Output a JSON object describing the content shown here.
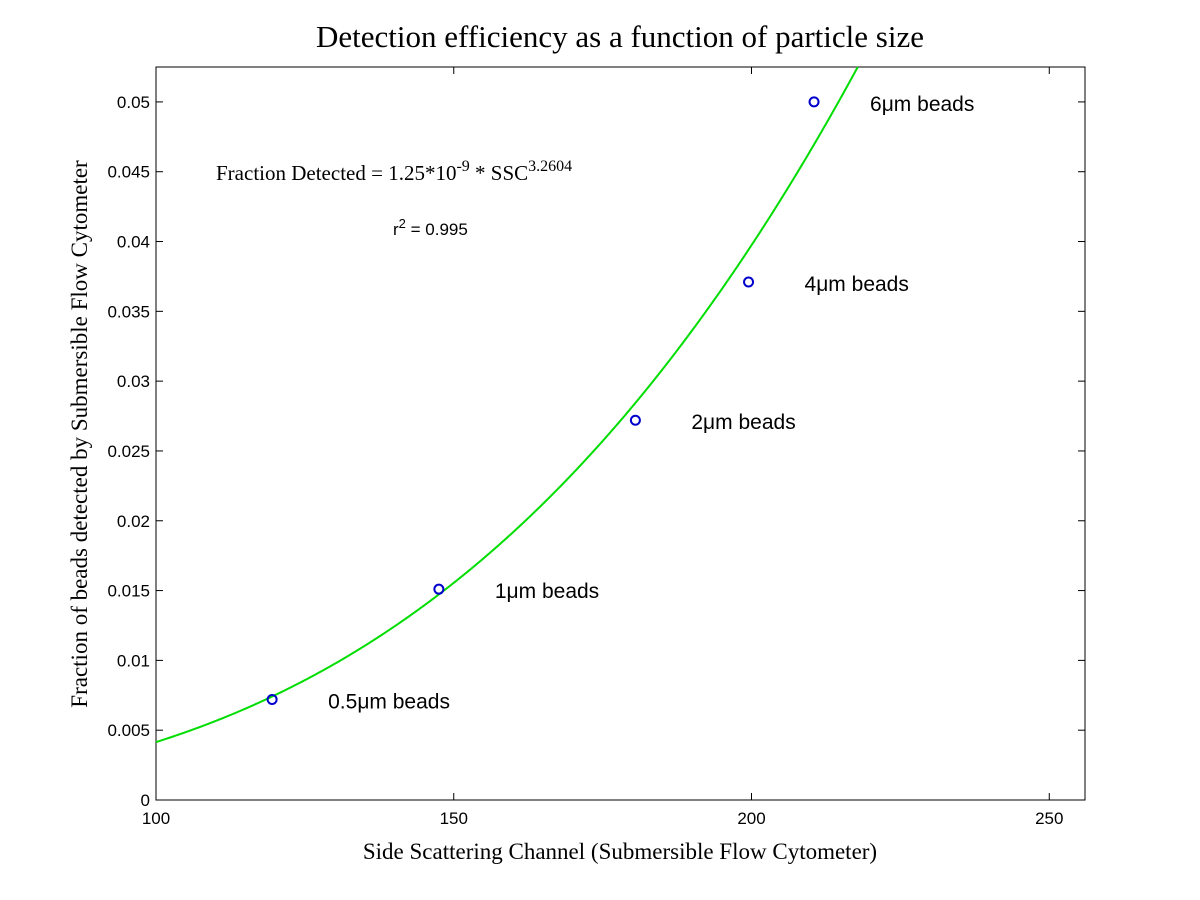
{
  "chart_data": {
    "type": "scatter",
    "title": "Detection efficiency as a function of particle size",
    "xlabel": "Side Scattering Channel (Submersible Flow Cytometer)",
    "ylabel": "Fraction of beads detected by Submersible Flow Cytometer",
    "xlim": [
      100,
      256
    ],
    "ylim": [
      0,
      0.0525
    ],
    "xticks": [
      100,
      150,
      200,
      250
    ],
    "xtick_labels": [
      "100",
      "150",
      "200",
      "250"
    ],
    "yticks": [
      0,
      0.005,
      0.01,
      0.015,
      0.02,
      0.025,
      0.03,
      0.035,
      0.04,
      0.045,
      0.05
    ],
    "ytick_labels": [
      "0",
      "0.005",
      "0.01",
      "0.015",
      "0.02",
      "0.025",
      "0.03",
      "0.035",
      "0.04",
      "0.045",
      "0.05"
    ],
    "grid": false,
    "legend": "none",
    "points": [
      {
        "x": 119.5,
        "y": 0.0072,
        "label": "0.5μm beads"
      },
      {
        "x": 147.5,
        "y": 0.0151,
        "label": "1μm beads"
      },
      {
        "x": 180.5,
        "y": 0.0272,
        "label": "2μm beads"
      },
      {
        "x": 199.5,
        "y": 0.0371,
        "label": "4μm beads"
      },
      {
        "x": 210.5,
        "y": 0.05,
        "label": "6μm beads"
      }
    ],
    "fit": {
      "equation_prefix": "Fraction Detected = 1.25*10",
      "equation_exp1": "-9",
      "equation_mid": " * SSC",
      "equation_exp2": "3.2604",
      "r2_prefix": "r",
      "r2_exp": "2",
      "r2_suffix": " = 0.995",
      "coef": 1.25e-09,
      "power": 3.2604
    },
    "colors": {
      "points": "#0000cc",
      "fit": "#00dd00",
      "axes": "#000000"
    }
  }
}
